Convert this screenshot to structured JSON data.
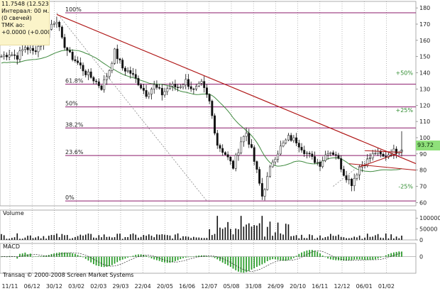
{
  "info_box": {
    "price_line": "11.7548 (12.5232%)",
    "interval_line": "Интервал: 00 м.",
    "candles_line": "(0 свечей)",
    "tmk_line": "ТМК ао:",
    "change_line": "+0.0000 (+0.0000%)"
  },
  "last_price_badge": "93.72",
  "copyright": "Transaq © 2000-2008 Screen Market Systems",
  "colors": {
    "fib_line": "#8b1a6b",
    "trend_line": "#b01818",
    "moving_average": "#3f8a3f",
    "macd_histogram": "#2e9e2e",
    "badge": "#8fe07a"
  },
  "chart_data": {
    "type": "candlestick",
    "title": "",
    "price_axis": {
      "ticks": [
        60,
        70,
        80,
        90,
        100,
        110,
        120,
        130,
        140,
        150,
        160,
        170,
        180
      ],
      "range": [
        58,
        184
      ]
    },
    "x_axis": {
      "ticks": [
        "11/11",
        "06/12",
        "30/12",
        "03/02",
        "02/03",
        "29/03",
        "22/04",
        "20/05",
        "16/06",
        "12/07",
        "05/08",
        "31/08",
        "26/09",
        "20/10",
        "16/11",
        "12/12",
        "06/01",
        "01/02"
      ]
    },
    "fibonacci": {
      "levels": [
        {
          "label": "100%",
          "value": 177
        },
        {
          "label": "61.8%",
          "value": 133
        },
        {
          "label": "50%",
          "value": 119
        },
        {
          "label": "38.2%",
          "value": 106
        },
        {
          "label": "23.6%",
          "value": 89
        },
        {
          "label": "0%",
          "value": 61
        }
      ]
    },
    "annotations": [
      {
        "label": "+50%",
        "value": 140
      },
      {
        "label": "+25%",
        "value": 117
      },
      {
        "label": "-25%",
        "value": 70
      }
    ],
    "price_series_approx": [
      {
        "i": 0,
        "v": 150
      },
      {
        "i": 3,
        "v": 152
      },
      {
        "i": 6,
        "v": 150
      },
      {
        "i": 9,
        "v": 156
      },
      {
        "i": 12,
        "v": 153
      },
      {
        "i": 15,
        "v": 158
      },
      {
        "i": 17,
        "v": 163
      },
      {
        "i": 19,
        "v": 170
      },
      {
        "i": 21,
        "v": 173
      },
      {
        "i": 23,
        "v": 160
      },
      {
        "i": 26,
        "v": 151
      },
      {
        "i": 29,
        "v": 146
      },
      {
        "i": 32,
        "v": 140
      },
      {
        "i": 35,
        "v": 136
      },
      {
        "i": 38,
        "v": 131
      },
      {
        "i": 41,
        "v": 142
      },
      {
        "i": 43,
        "v": 153
      },
      {
        "i": 46,
        "v": 143
      },
      {
        "i": 49,
        "v": 140
      },
      {
        "i": 52,
        "v": 134
      },
      {
        "i": 55,
        "v": 127
      },
      {
        "i": 58,
        "v": 132
      },
      {
        "i": 61,
        "v": 127
      },
      {
        "i": 64,
        "v": 132
      },
      {
        "i": 67,
        "v": 131
      },
      {
        "i": 70,
        "v": 135
      },
      {
        "i": 73,
        "v": 129
      },
      {
        "i": 76,
        "v": 133
      },
      {
        "i": 79,
        "v": 122
      },
      {
        "i": 82,
        "v": 96
      },
      {
        "i": 85,
        "v": 90
      },
      {
        "i": 88,
        "v": 82
      },
      {
        "i": 91,
        "v": 98
      },
      {
        "i": 93,
        "v": 103
      },
      {
        "i": 95,
        "v": 92
      },
      {
        "i": 97,
        "v": 79
      },
      {
        "i": 99,
        "v": 64
      },
      {
        "i": 101,
        "v": 75
      },
      {
        "i": 103,
        "v": 86
      },
      {
        "i": 106,
        "v": 94
      },
      {
        "i": 109,
        "v": 100
      },
      {
        "i": 112,
        "v": 98
      },
      {
        "i": 115,
        "v": 92
      },
      {
        "i": 118,
        "v": 87
      },
      {
        "i": 121,
        "v": 84
      },
      {
        "i": 124,
        "v": 92
      },
      {
        "i": 127,
        "v": 90
      },
      {
        "i": 130,
        "v": 78
      },
      {
        "i": 133,
        "v": 72
      },
      {
        "i": 136,
        "v": 82
      },
      {
        "i": 139,
        "v": 86
      },
      {
        "i": 142,
        "v": 91
      },
      {
        "i": 145,
        "v": 88
      },
      {
        "i": 148,
        "v": 91
      },
      {
        "i": 150,
        "v": 92
      },
      {
        "i": 152,
        "v": 93.72
      }
    ],
    "volume": {
      "title": "Volume",
      "ticks": [
        0,
        50000,
        100000
      ],
      "range": [
        0,
        130000
      ]
    },
    "macd": {
      "title": "MACD",
      "ticks": [
        0
      ],
      "range": [
        -15,
        12
      ]
    }
  }
}
